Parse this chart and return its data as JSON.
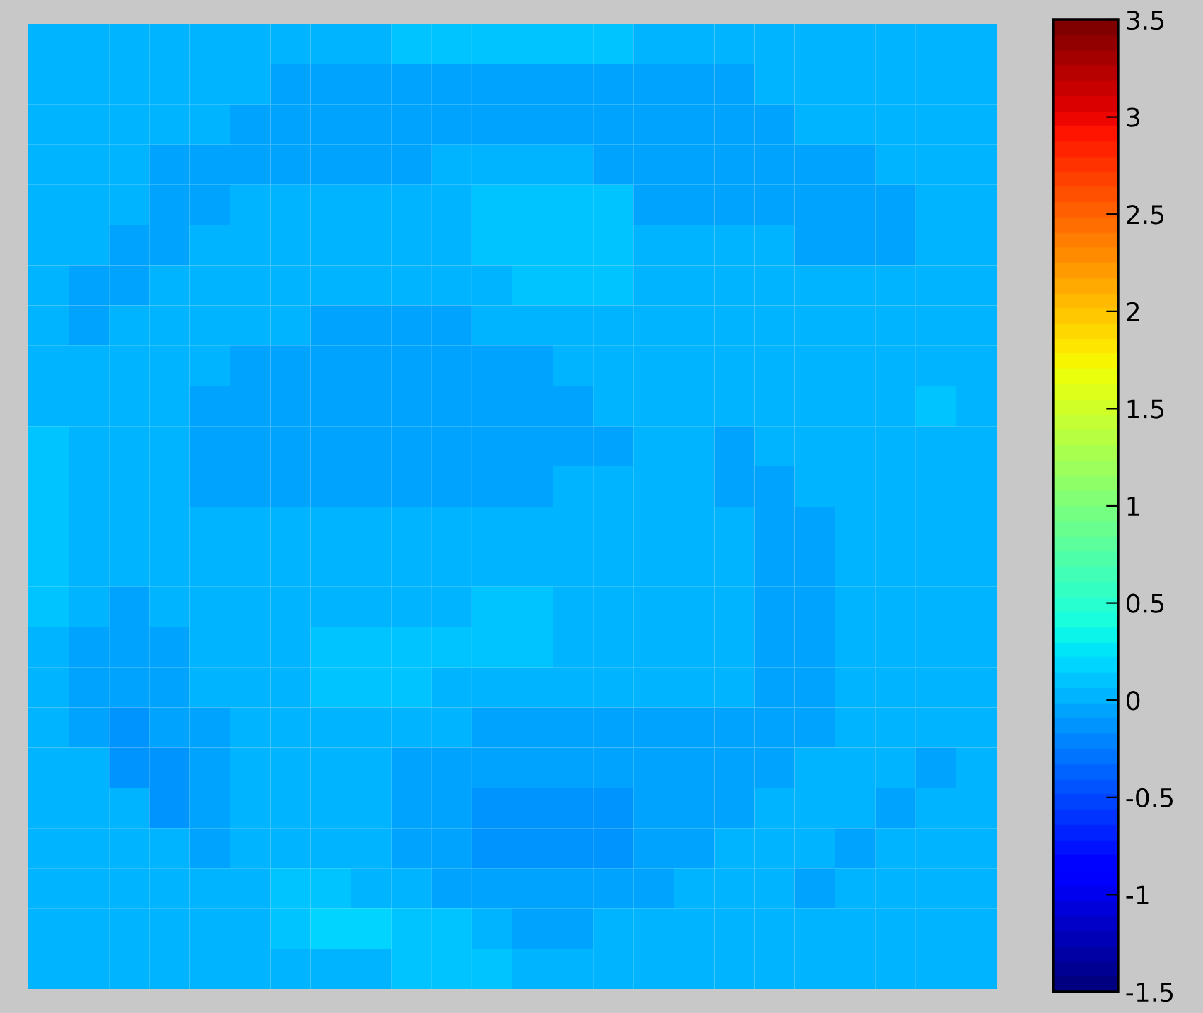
{
  "chart_data": {
    "type": "heatmap",
    "categories": [
      null,
      null,
      null,
      null,
      null,
      null,
      null,
      null,
      null,
      null,
      null,
      null,
      null,
      null,
      null,
      null,
      null,
      null,
      null,
      null,
      null,
      null,
      null,
      null
    ],
    "y_categories": [
      null,
      null,
      null,
      null,
      null,
      null,
      null,
      null,
      null,
      null,
      null,
      null,
      null,
      null,
      null,
      null,
      null,
      null,
      null,
      null,
      null,
      null,
      null,
      null
    ],
    "cells": [
      [
        0.03,
        0.03,
        0.03,
        0.03,
        0.03,
        0.03,
        0.03,
        0.03,
        0.03,
        0.1,
        0.1,
        0.1,
        0.1,
        0.1,
        0.1,
        0.03,
        0.03,
        0.03,
        0.03,
        0.03,
        0.03,
        0.03,
        0.03,
        0.03
      ],
      [
        0.03,
        0.03,
        0.03,
        0.03,
        0.03,
        0.03,
        -0.05,
        -0.05,
        -0.05,
        -0.05,
        -0.05,
        -0.05,
        -0.05,
        -0.05,
        -0.05,
        -0.05,
        -0.05,
        -0.05,
        0.03,
        0.03,
        0.03,
        0.03,
        0.03,
        0.03
      ],
      [
        0.03,
        0.03,
        0.03,
        0.03,
        0.03,
        -0.05,
        -0.05,
        -0.05,
        -0.05,
        -0.05,
        -0.05,
        -0.05,
        -0.05,
        -0.05,
        -0.05,
        -0.05,
        -0.05,
        -0.05,
        -0.05,
        0.03,
        0.03,
        0.03,
        0.03,
        0.03
      ],
      [
        0.03,
        0.03,
        0.03,
        -0.05,
        -0.05,
        -0.05,
        -0.05,
        -0.05,
        -0.05,
        -0.05,
        0.03,
        0.03,
        0.03,
        0.03,
        -0.05,
        -0.05,
        -0.05,
        -0.05,
        -0.05,
        -0.05,
        -0.05,
        0.03,
        0.03,
        0.03
      ],
      [
        0.03,
        0.03,
        0.03,
        -0.05,
        -0.05,
        0.03,
        0.03,
        0.03,
        0.03,
        0.03,
        0.03,
        0.1,
        0.1,
        0.1,
        0.1,
        -0.05,
        -0.05,
        -0.05,
        -0.05,
        -0.05,
        -0.05,
        -0.05,
        0.03,
        0.03
      ],
      [
        0.03,
        0.03,
        -0.05,
        -0.05,
        0.03,
        0.03,
        0.03,
        0.03,
        0.03,
        0.03,
        0.03,
        0.1,
        0.1,
        0.1,
        0.1,
        0.03,
        0.03,
        0.03,
        0.03,
        -0.05,
        -0.05,
        -0.05,
        0.03,
        0.03
      ],
      [
        0.03,
        -0.05,
        -0.05,
        0.03,
        0.03,
        0.03,
        0.03,
        0.03,
        0.03,
        0.03,
        0.03,
        0.03,
        0.1,
        0.1,
        0.1,
        0.03,
        0.03,
        0.03,
        0.03,
        0.03,
        0.03,
        0.03,
        0.03,
        0.03
      ],
      [
        0.03,
        -0.05,
        0.03,
        0.03,
        0.03,
        0.03,
        0.03,
        -0.05,
        -0.05,
        -0.05,
        -0.05,
        0.03,
        0.03,
        0.03,
        0.03,
        0.03,
        0.03,
        0.03,
        0.03,
        0.03,
        0.03,
        0.03,
        0.03,
        0.03
      ],
      [
        0.03,
        0.03,
        0.03,
        0.03,
        0.03,
        -0.05,
        -0.05,
        -0.05,
        -0.05,
        -0.05,
        -0.05,
        -0.05,
        -0.05,
        0.03,
        0.03,
        0.03,
        0.03,
        0.03,
        0.03,
        0.03,
        0.03,
        0.03,
        0.03,
        0.03
      ],
      [
        0.03,
        0.03,
        0.03,
        0.03,
        -0.05,
        -0.05,
        -0.05,
        -0.05,
        -0.05,
        -0.05,
        -0.05,
        -0.05,
        -0.05,
        -0.05,
        0.03,
        0.03,
        0.03,
        0.03,
        0.03,
        0.03,
        0.03,
        0.03,
        0.1,
        0.03
      ],
      [
        0.1,
        0.03,
        0.03,
        0.03,
        -0.05,
        -0.05,
        -0.05,
        -0.05,
        -0.05,
        -0.05,
        -0.05,
        -0.05,
        -0.05,
        -0.05,
        -0.05,
        0.03,
        0.03,
        -0.05,
        0.03,
        0.03,
        0.03,
        0.03,
        0.03,
        0.03
      ],
      [
        0.1,
        0.03,
        0.03,
        0.03,
        -0.05,
        -0.05,
        -0.05,
        -0.05,
        -0.05,
        -0.05,
        -0.05,
        -0.05,
        -0.05,
        0.03,
        0.03,
        0.03,
        0.03,
        -0.05,
        -0.05,
        0.03,
        0.03,
        0.03,
        0.03,
        0.03
      ],
      [
        0.1,
        0.03,
        0.03,
        0.03,
        0.03,
        0.03,
        0.03,
        0.03,
        0.03,
        0.03,
        0.03,
        0.03,
        0.03,
        0.03,
        0.03,
        0.03,
        0.03,
        0.03,
        -0.05,
        -0.05,
        0.03,
        0.03,
        0.03,
        0.03
      ],
      [
        0.1,
        0.03,
        0.03,
        0.03,
        0.03,
        0.03,
        0.03,
        0.03,
        0.03,
        0.03,
        0.03,
        0.03,
        0.03,
        0.03,
        0.03,
        0.03,
        0.03,
        0.03,
        -0.05,
        -0.05,
        0.03,
        0.03,
        0.03,
        0.03
      ],
      [
        0.1,
        0.03,
        -0.05,
        0.03,
        0.03,
        0.03,
        0.03,
        0.03,
        0.03,
        0.03,
        0.03,
        0.1,
        0.1,
        0.03,
        0.03,
        0.03,
        0.03,
        0.03,
        -0.05,
        -0.05,
        0.03,
        0.03,
        0.03,
        0.03
      ],
      [
        0.03,
        -0.05,
        -0.05,
        -0.05,
        0.03,
        0.03,
        0.03,
        0.1,
        0.1,
        0.1,
        0.1,
        0.1,
        0.1,
        0.03,
        0.03,
        0.03,
        0.03,
        0.03,
        -0.05,
        -0.05,
        0.03,
        0.03,
        0.03,
        0.03
      ],
      [
        0.03,
        -0.05,
        -0.05,
        -0.05,
        0.03,
        0.03,
        0.03,
        0.1,
        0.1,
        0.1,
        0.03,
        0.03,
        0.03,
        0.03,
        0.03,
        0.03,
        0.03,
        0.03,
        -0.05,
        -0.05,
        0.03,
        0.03,
        0.03,
        0.03
      ],
      [
        0.03,
        -0.05,
        -0.13,
        -0.05,
        -0.05,
        0.03,
        0.03,
        0.03,
        0.03,
        0.03,
        0.03,
        -0.05,
        -0.05,
        -0.05,
        -0.05,
        -0.05,
        -0.05,
        -0.05,
        -0.05,
        -0.05,
        0.03,
        0.03,
        0.03,
        0.03
      ],
      [
        0.03,
        0.03,
        -0.13,
        -0.13,
        -0.05,
        0.03,
        0.03,
        0.03,
        0.03,
        -0.05,
        -0.05,
        -0.05,
        -0.05,
        -0.05,
        -0.05,
        -0.05,
        -0.05,
        -0.05,
        -0.05,
        0.03,
        0.03,
        0.03,
        -0.05,
        0.03
      ],
      [
        0.03,
        0.03,
        0.03,
        -0.13,
        -0.05,
        0.03,
        0.03,
        0.03,
        0.03,
        -0.05,
        -0.05,
        -0.13,
        -0.13,
        -0.13,
        -0.13,
        -0.05,
        -0.05,
        -0.05,
        0.03,
        0.03,
        0.03,
        -0.05,
        0.03,
        0.03
      ],
      [
        0.03,
        0.03,
        0.03,
        0.03,
        -0.05,
        0.03,
        0.03,
        0.03,
        0.03,
        -0.05,
        -0.05,
        -0.13,
        -0.13,
        -0.13,
        -0.13,
        -0.05,
        -0.05,
        0.03,
        0.03,
        0.03,
        -0.05,
        0.03,
        0.03,
        0.03
      ],
      [
        0.03,
        0.03,
        0.03,
        0.03,
        0.03,
        0.03,
        0.1,
        0.1,
        0.03,
        0.03,
        -0.05,
        -0.05,
        -0.05,
        -0.05,
        -0.05,
        -0.05,
        0.03,
        0.03,
        0.03,
        -0.05,
        0.03,
        0.03,
        0.03,
        0.03
      ],
      [
        0.03,
        0.03,
        0.03,
        0.03,
        0.03,
        0.03,
        0.1,
        0.18,
        0.18,
        0.1,
        0.1,
        0.03,
        -0.05,
        -0.05,
        0.03,
        0.03,
        0.03,
        0.03,
        0.03,
        0.03,
        0.03,
        0.03,
        0.03,
        0.03
      ],
      [
        0.03,
        0.03,
        0.03,
        0.03,
        0.03,
        0.03,
        0.03,
        0.03,
        0.03,
        0.1,
        0.1,
        0.1,
        0.03,
        0.03,
        0.03,
        0.03,
        0.03,
        0.03,
        0.03,
        0.03,
        0.03,
        0.03,
        0.03,
        0.03
      ]
    ],
    "clim": [
      -1.5,
      3.5
    ],
    "cticks": [
      -1.5,
      {
        "value": -1,
        "label": "-1"
      },
      -0.5,
      0,
      0.5,
      1,
      1.5,
      2,
      2.5,
      3,
      3.5
    ],
    "tick_labels": false
  }
}
